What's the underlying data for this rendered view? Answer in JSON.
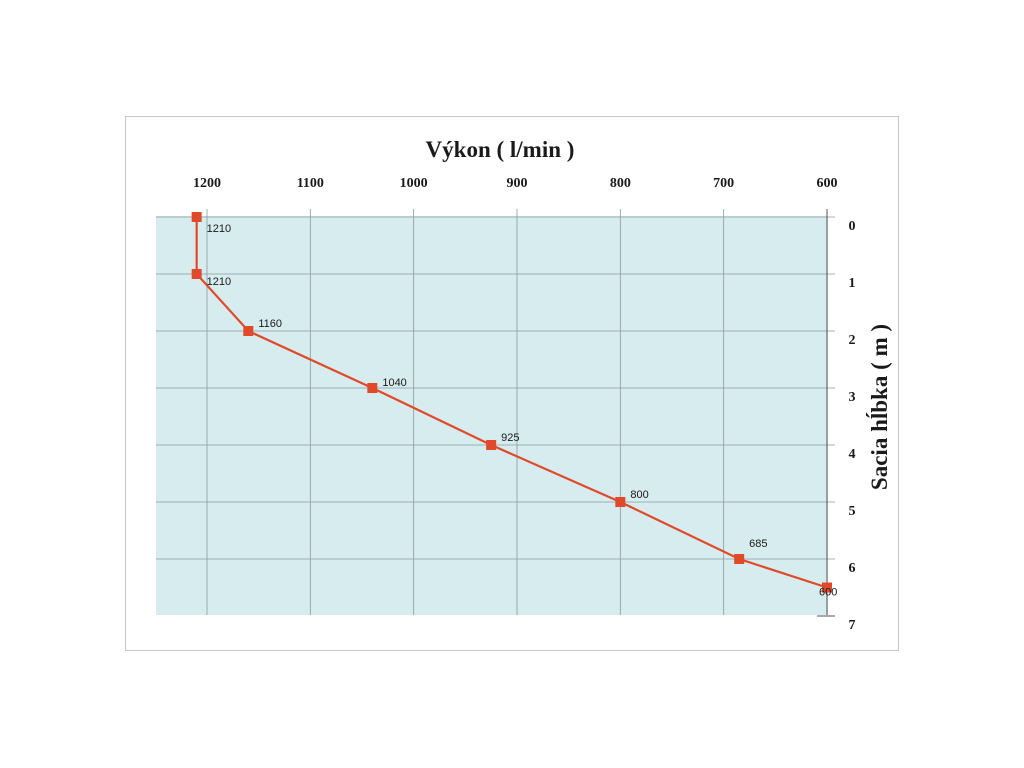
{
  "chart_data": {
    "type": "line",
    "title": "Výkon ( l/min )",
    "xlabel": "Výkon ( l/min )",
    "ylabel": "Sacia hĺbka  ( m )",
    "x_axis_position": "top",
    "x_reversed": true,
    "y_reversed": true,
    "xlim": [
      1250,
      600
    ],
    "ylim": [
      0,
      7
    ],
    "x_ticks": [
      1200,
      1100,
      1000,
      900,
      800,
      700,
      600
    ],
    "x_tick_labels": [
      "1200",
      "1100",
      "1000",
      "900",
      "800",
      "700",
      "600"
    ],
    "y_ticks": [
      0,
      1,
      2,
      3,
      4,
      5,
      6,
      7
    ],
    "y_tick_labels": [
      "0",
      "1",
      "2",
      "3",
      "4",
      "5",
      "6",
      "7"
    ],
    "grid": true,
    "series": [
      {
        "x": [
          1210,
          1210,
          1160,
          1040,
          925,
          800,
          685,
          600
        ],
        "y": [
          0,
          1,
          2,
          3,
          4,
          5,
          6,
          6.5
        ],
        "labels": [
          "1210",
          "1210",
          "1160",
          "1040",
          "925",
          "800",
          "685",
          "600"
        ]
      }
    ]
  },
  "colors": {
    "plot_background": "#d7ecee",
    "grid": "#8a9a9c",
    "line": "#e04a2a",
    "marker": "#e04a2a"
  }
}
